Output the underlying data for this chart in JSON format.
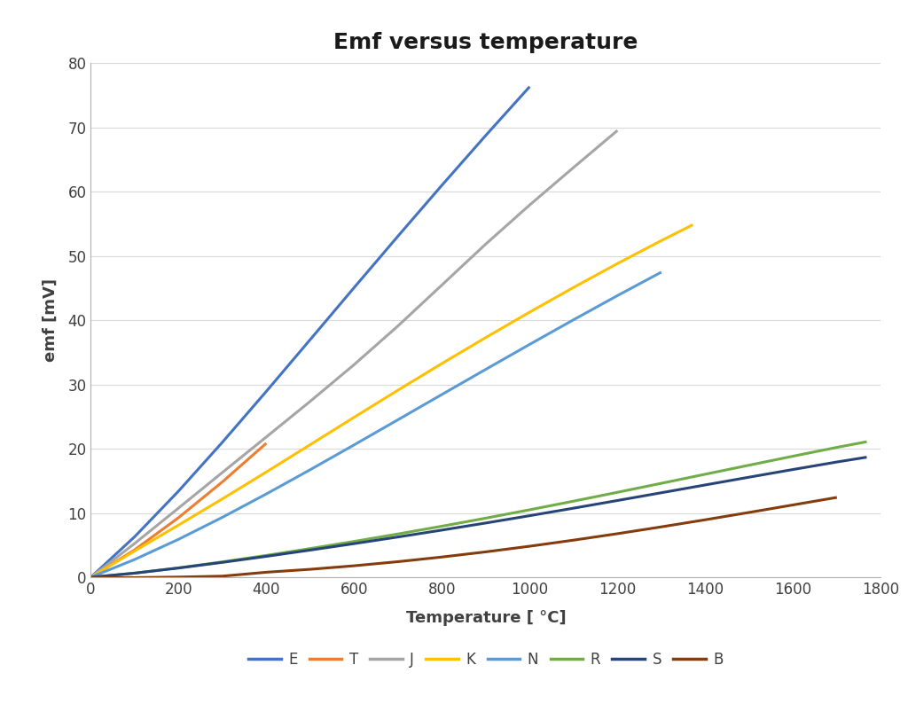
{
  "title": "Emf versus temperature",
  "xlabel": "Temperature [ °C]",
  "ylabel": "emf [mV]",
  "xlim": [
    0,
    1800
  ],
  "ylim": [
    0,
    80
  ],
  "xticks": [
    0,
    200,
    400,
    600,
    800,
    1000,
    1200,
    1400,
    1600,
    1800
  ],
  "yticks": [
    0,
    10,
    20,
    30,
    40,
    50,
    60,
    70,
    80
  ],
  "background_color": "#ffffff",
  "series": {
    "E": {
      "color": "#4472c4"
    },
    "T": {
      "color": "#ed7d31"
    },
    "J": {
      "color": "#a5a5a5"
    },
    "K": {
      "color": "#ffc000"
    },
    "N": {
      "color": "#5b9bd5"
    },
    "R": {
      "color": "#70ad47"
    },
    "S": {
      "color": "#264478"
    },
    "B": {
      "color": "#843c0c"
    }
  },
  "thermocouple_data": {
    "E": [
      [
        0,
        0
      ],
      [
        100,
        6.319
      ],
      [
        200,
        13.421
      ],
      [
        300,
        21.036
      ],
      [
        400,
        28.946
      ],
      [
        500,
        37.005
      ],
      [
        600,
        45.093
      ],
      [
        700,
        53.112
      ],
      [
        800,
        61.022
      ],
      [
        900,
        68.787
      ],
      [
        1000,
        76.373
      ]
    ],
    "T": [
      [
        0,
        0
      ],
      [
        100,
        4.279
      ],
      [
        200,
        9.288
      ],
      [
        300,
        14.862
      ],
      [
        400,
        20.872
      ]
    ],
    "J": [
      [
        0,
        0
      ],
      [
        100,
        5.269
      ],
      [
        200,
        10.779
      ],
      [
        300,
        16.327
      ],
      [
        400,
        21.848
      ],
      [
        500,
        27.393
      ],
      [
        600,
        33.102
      ],
      [
        700,
        39.132
      ],
      [
        800,
        45.494
      ],
      [
        900,
        51.877
      ],
      [
        1000,
        57.953
      ],
      [
        1100,
        63.792
      ],
      [
        1200,
        69.553
      ]
    ],
    "K": [
      [
        0,
        0
      ],
      [
        100,
        4.096
      ],
      [
        200,
        8.138
      ],
      [
        300,
        12.209
      ],
      [
        400,
        16.397
      ],
      [
        500,
        20.644
      ],
      [
        600,
        24.905
      ],
      [
        700,
        29.129
      ],
      [
        800,
        33.275
      ],
      [
        900,
        37.326
      ],
      [
        1000,
        41.276
      ],
      [
        1100,
        45.119
      ],
      [
        1200,
        48.838
      ],
      [
        1300,
        52.41
      ],
      [
        1372,
        54.886
      ]
    ],
    "N": [
      [
        0,
        0
      ],
      [
        100,
        2.774
      ],
      [
        200,
        5.913
      ],
      [
        300,
        9.341
      ],
      [
        400,
        12.974
      ],
      [
        500,
        16.748
      ],
      [
        600,
        20.613
      ],
      [
        700,
        24.527
      ],
      [
        800,
        28.455
      ],
      [
        900,
        32.371
      ],
      [
        1000,
        36.256
      ],
      [
        1100,
        40.087
      ],
      [
        1200,
        43.846
      ],
      [
        1300,
        47.502
      ]
    ],
    "R": [
      [
        0,
        0
      ],
      [
        100,
        0.647
      ],
      [
        200,
        1.469
      ],
      [
        300,
        2.401
      ],
      [
        400,
        3.408
      ],
      [
        500,
        4.471
      ],
      [
        600,
        5.583
      ],
      [
        700,
        6.743
      ],
      [
        800,
        7.95
      ],
      [
        900,
        9.205
      ],
      [
        1000,
        10.506
      ],
      [
        1100,
        11.85
      ],
      [
        1200,
        13.228
      ],
      [
        1300,
        14.629
      ],
      [
        1400,
        16.04
      ],
      [
        1500,
        17.451
      ],
      [
        1600,
        18.849
      ],
      [
        1700,
        20.222
      ],
      [
        1768,
        21.101
      ]
    ],
    "S": [
      [
        0,
        0
      ],
      [
        100,
        0.646
      ],
      [
        200,
        1.441
      ],
      [
        300,
        2.323
      ],
      [
        400,
        3.259
      ],
      [
        500,
        4.233
      ],
      [
        600,
        5.239
      ],
      [
        700,
        6.275
      ],
      [
        800,
        7.345
      ],
      [
        900,
        8.449
      ],
      [
        1000,
        9.587
      ],
      [
        1100,
        10.757
      ],
      [
        1200,
        11.951
      ],
      [
        1300,
        13.159
      ],
      [
        1400,
        14.373
      ],
      [
        1500,
        15.582
      ],
      [
        1600,
        16.777
      ],
      [
        1700,
        17.947
      ],
      [
        1768,
        18.694
      ]
    ],
    "B": [
      [
        0,
        0.0
      ],
      [
        100,
        -0.053
      ],
      [
        200,
        0.033
      ],
      [
        300,
        0.178
      ],
      [
        400,
        0.787
      ],
      [
        500,
        1.242
      ],
      [
        600,
        1.792
      ],
      [
        700,
        2.431
      ],
      [
        800,
        3.154
      ],
      [
        900,
        3.957
      ],
      [
        1000,
        4.834
      ],
      [
        1100,
        5.78
      ],
      [
        1200,
        6.786
      ],
      [
        1300,
        7.848
      ],
      [
        1400,
        8.952
      ],
      [
        1500,
        10.094
      ],
      [
        1600,
        11.263
      ],
      [
        1700,
        12.433
      ]
    ]
  },
  "legend_order": [
    "E",
    "T",
    "J",
    "K",
    "N",
    "R",
    "S",
    "B"
  ],
  "title_fontsize": 18,
  "label_fontsize": 13,
  "tick_fontsize": 12,
  "legend_fontsize": 12,
  "linewidth": 2.2,
  "grid_color": "#d9d9d9",
  "spine_color": "#b0b0b0",
  "text_color": "#404040"
}
